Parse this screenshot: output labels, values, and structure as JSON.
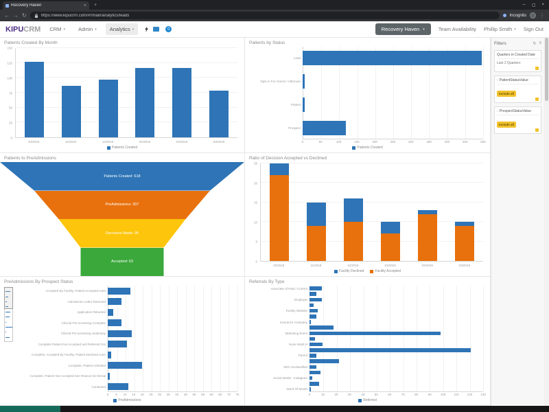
{
  "browser": {
    "tab_title": "Recovery Haven",
    "url": "https://www.kipucrm.com/#!/main/analytics/leads",
    "incognito_label": "Incognito"
  },
  "icons": {
    "back": "←",
    "forward": "→",
    "reload": "↻",
    "menu_dots": "⋮",
    "minimize": "─",
    "maximize": "▢",
    "close": "×",
    "tab_close": "×",
    "new_tab": "+",
    "caret": "▾",
    "refresh": "↻",
    "hamburger": "≡",
    "expand": "›"
  },
  "nav": {
    "logo_primary": "KIPU",
    "logo_secondary": "CRM",
    "menu_crm": "CRM",
    "menu_admin": "Admin",
    "menu_analytics": "Analytics",
    "notification_badge": "0",
    "facility_button": "Recovery Haven",
    "team_availability": "Team Availability",
    "user_name": "Phillip Smith",
    "sign_out": "Sign Out"
  },
  "filters": {
    "title": "Filters",
    "card1_title": "Quarters in Created Date",
    "card1_value": "Last 2 Quarters",
    "card2_title": "PatientStatusValue",
    "card2_chip": "Include all",
    "card3_title": "ProspectStatusValue",
    "card3_chip": "Include all"
  },
  "colors": {
    "bar_blue": "#2e74b6",
    "accent_orange": "#e8710d",
    "accent_yellow": "#fdc50b",
    "accent_green": "#3aa83a",
    "chip_yellow": "#f2c22e",
    "logo_purple": "#4b2c83"
  },
  "chart_data": [
    {
      "type": "bar",
      "title": "Patients Created By Month",
      "categories": [
        "10/2018",
        "11/2018",
        "12/2018",
        "01/2019",
        "02/2019",
        "03/2019"
      ],
      "values": [
        127,
        87,
        97,
        117,
        117,
        79
      ],
      "y_ticks": [
        0,
        25,
        50,
        75,
        100,
        125,
        150
      ],
      "ylim": [
        0,
        150
      ],
      "bar_color": "#2e74b6",
      "legend": [
        {
          "label": "Patients Created",
          "color": "#2e74b6"
        }
      ]
    },
    {
      "type": "hbar",
      "title": "Patients by Status",
      "categories": [
        "Lead",
        "Opts in For Alumni / Aftercare",
        "Patient",
        "Prospect"
      ],
      "values": [
        497,
        5,
        6,
        120
      ],
      "x_ticks": [
        0,
        50,
        100,
        150,
        200,
        250,
        300,
        350,
        400,
        450,
        500
      ],
      "xlim": [
        0,
        500
      ],
      "label_w": 78,
      "bar_thickness": 62,
      "bar_color": "#2e74b6",
      "legend": [
        {
          "label": "Patients Created",
          "color": "#2e74b6"
        }
      ]
    },
    {
      "type": "funnel",
      "title": "Patients to PreAdmissions",
      "segments": [
        {
          "label": "Patients Created: 618",
          "value": 618,
          "color": "#2e74b6"
        },
        {
          "label": "PreAdmissions: 307",
          "value": 307,
          "color": "#e8710d"
        },
        {
          "label": "Decisions Made: 95",
          "value": 95,
          "color": "#fdc50b"
        },
        {
          "label": "Accepted: 63",
          "value": 63,
          "color": "#3aa83a"
        }
      ],
      "boundaries": [
        100,
        72,
        52,
        34
      ]
    },
    {
      "type": "bar-stacked",
      "title": "Ratio of Decision Accepted vs Declined",
      "categories": [
        "10/2018",
        "11/2018",
        "12/2018",
        "01/2019",
        "02/2019",
        "03/2019"
      ],
      "series": [
        {
          "name": "Facility Accepted",
          "color": "#e8710d",
          "values": [
            22,
            9,
            10,
            7,
            12,
            9
          ]
        },
        {
          "name": "Facility Declined",
          "color": "#2e74b6",
          "values": [
            3,
            6,
            6,
            3,
            1,
            1
          ]
        }
      ],
      "y_ticks": [
        0,
        5,
        10,
        15,
        20,
        25
      ],
      "ylim": [
        0,
        25
      ],
      "legend": [
        {
          "label": "Facility Declined",
          "color": "#2e74b6"
        },
        {
          "label": "Facility Accepted",
          "color": "#e8710d"
        }
      ]
    },
    {
      "type": "hbar",
      "title": "PreAdmissions By Prospect Status",
      "categories": [
        "Accepted By Facility, Patient Accepted Care",
        "Admissions Letter Returned",
        "Application Returned",
        "Clinical Pre-screening Complete",
        "Clinical Pre-screening Underway",
        "Complete Patient Not Accepted and Referred Out",
        "Complete, Accepted By Facility, Patient Declined Care",
        "Complete, Patient Admitted",
        "Complete, Patient Not Accepted See Reason for Denial",
        "Contacted"
      ],
      "values": [
        13,
        8,
        3,
        8,
        14,
        11,
        2,
        20,
        1,
        12
      ],
      "x_ticks": [
        0,
        5,
        10,
        15,
        20,
        25,
        30,
        35,
        40,
        45,
        50,
        55,
        60,
        65,
        70,
        75
      ],
      "xlim": [
        0,
        75
      ],
      "label_w": 136,
      "bar_thickness": 62,
      "bar_color": "#2e74b6",
      "has_scroll_preview": true,
      "legend": [
        {
          "label": "PreAdmissions",
          "color": "#2e74b6"
        }
      ]
    },
    {
      "type": "hbar",
      "title": "Referrals By Type",
      "categories": [
        "Associate of Past / Current",
        "",
        "Employer",
        "",
        "Facility Website",
        "",
        "Insurance Company",
        "",
        "Marketing Event",
        "",
        "None Walk In",
        "",
        "Parent",
        "",
        "SEO Unclassified",
        "",
        "Social Media - Instagram",
        "",
        "Word Of Mouth"
      ],
      "values": [
        9,
        5,
        9,
        3,
        6,
        5,
        1,
        18,
        98,
        4,
        10,
        121,
        5,
        22,
        5,
        8,
        2,
        7,
        1
      ],
      "x_ticks": [
        0,
        10,
        20,
        30,
        40,
        50,
        60,
        70,
        80,
        90,
        100,
        110,
        120,
        130
      ],
      "xlim": [
        0,
        130
      ],
      "label_w": 88,
      "bar_thickness": 68,
      "bar_color": "#2e74b6",
      "legend": [
        {
          "label": "Referred",
          "color": "#2e74b6"
        }
      ]
    }
  ]
}
